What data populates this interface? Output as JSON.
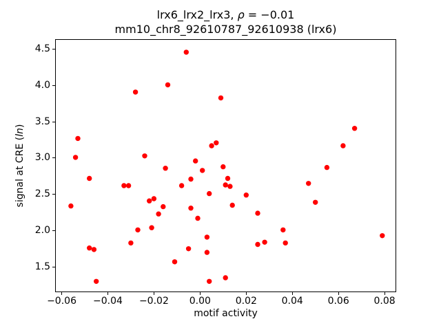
{
  "title": {
    "line1_prefix": "lrx6_lrx2_lrx3, ",
    "line1_rho": "ρ",
    "line1_value": " = −0.01",
    "line2": "mm10_chr8_92610787_92610938 (lrx6)"
  },
  "axes": {
    "xlabel": "motif activity",
    "ylabel_prefix": "signal at CRE (",
    "ylabel_italic": "ln",
    "ylabel_suffix": ")",
    "x_ticks": [
      {
        "value": -0.06,
        "label": "−0.06"
      },
      {
        "value": -0.04,
        "label": "−0.04"
      },
      {
        "value": -0.02,
        "label": "−0.02"
      },
      {
        "value": 0.0,
        "label": "0.00"
      },
      {
        "value": 0.02,
        "label": "0.02"
      },
      {
        "value": 0.04,
        "label": "0.04"
      },
      {
        "value": 0.06,
        "label": "0.06"
      },
      {
        "value": 0.08,
        "label": "0.08"
      }
    ],
    "y_ticks": [
      {
        "value": 1.5,
        "label": "1.5"
      },
      {
        "value": 2.0,
        "label": "2.0"
      },
      {
        "value": 2.5,
        "label": "2.5"
      },
      {
        "value": 3.0,
        "label": "3.0"
      },
      {
        "value": 3.5,
        "label": "3.5"
      },
      {
        "value": 4.0,
        "label": "4.0"
      },
      {
        "value": 4.5,
        "label": "4.5"
      }
    ]
  },
  "chart_data": {
    "type": "scatter",
    "title": "lrx6_lrx2_lrx3, ρ = −0.01\nmm10_chr8_92610787_92610938 (lrx6)",
    "xlabel": "motif activity",
    "ylabel": "signal at CRE (ln)",
    "xlim": [
      -0.0627,
      0.0849
    ],
    "ylim": [
      1.151,
      4.639
    ],
    "grid": false,
    "legend": null,
    "marker_color": "#ff0000",
    "marker_diameter_px": 7.4,
    "points": [
      [
        -0.056,
        2.34
      ],
      [
        -0.054,
        3.01
      ],
      [
        -0.053,
        3.27
      ],
      [
        -0.048,
        2.72
      ],
      [
        -0.048,
        1.76
      ],
      [
        -0.046,
        1.74
      ],
      [
        -0.045,
        1.3
      ],
      [
        -0.033,
        2.62
      ],
      [
        -0.031,
        2.62
      ],
      [
        -0.03,
        1.83
      ],
      [
        -0.028,
        3.91
      ],
      [
        -0.027,
        2.01
      ],
      [
        -0.024,
        3.03
      ],
      [
        -0.022,
        2.41
      ],
      [
        -0.021,
        2.04
      ],
      [
        -0.02,
        2.44
      ],
      [
        -0.018,
        2.23
      ],
      [
        -0.016,
        2.33
      ],
      [
        -0.015,
        2.86
      ],
      [
        -0.014,
        4.01
      ],
      [
        -0.011,
        1.57
      ],
      [
        -0.008,
        2.62
      ],
      [
        -0.006,
        4.46
      ],
      [
        -0.005,
        1.75
      ],
      [
        -0.004,
        2.71
      ],
      [
        -0.004,
        2.31
      ],
      [
        -0.002,
        2.96
      ],
      [
        -0.001,
        2.17
      ],
      [
        0.001,
        2.83
      ],
      [
        0.003,
        1.91
      ],
      [
        0.003,
        1.7
      ],
      [
        0.004,
        2.51
      ],
      [
        0.004,
        1.3
      ],
      [
        0.005,
        3.17
      ],
      [
        0.007,
        3.21
      ],
      [
        0.009,
        3.83
      ],
      [
        0.01,
        2.88
      ],
      [
        0.011,
        2.63
      ],
      [
        0.011,
        1.35
      ],
      [
        0.012,
        2.72
      ],
      [
        0.013,
        2.61
      ],
      [
        0.014,
        2.35
      ],
      [
        0.02,
        2.49
      ],
      [
        0.025,
        2.24
      ],
      [
        0.025,
        1.81
      ],
      [
        0.028,
        1.84
      ],
      [
        0.036,
        2.01
      ],
      [
        0.037,
        1.83
      ],
      [
        0.047,
        2.65
      ],
      [
        0.05,
        2.39
      ],
      [
        0.055,
        2.87
      ],
      [
        0.062,
        3.17
      ],
      [
        0.067,
        3.41
      ],
      [
        0.079,
        1.93
      ]
    ]
  }
}
